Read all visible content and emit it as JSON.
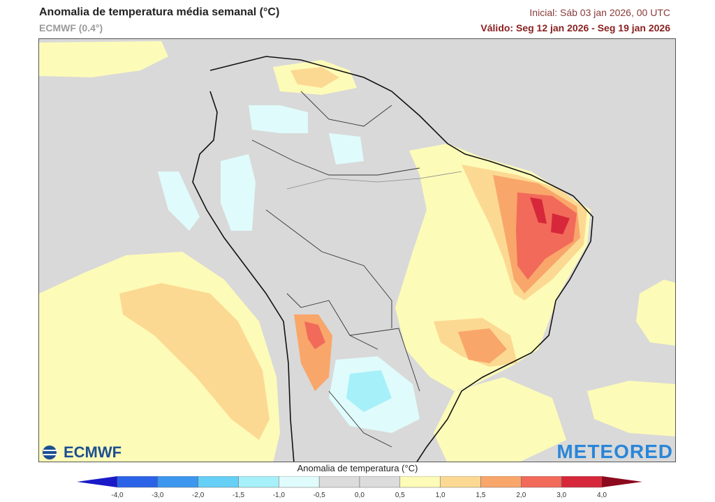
{
  "header": {
    "title": "Anomalia de temperatura média semanal (°C)",
    "model": "ECMWF (0.4°)",
    "initial": "Inicial: Sáb 03 jan 2026, 00 UTC",
    "valid": "Válido: Seg 12 jan 2026 - Seg 19 jan 2026"
  },
  "logos": {
    "left": "ECMWF",
    "right": "METEORED"
  },
  "colorbar": {
    "title": "Anomalia de temperatura (°C)",
    "ticks": [
      "-4,0",
      "-3,0",
      "-2,0",
      "-1,5",
      "-1,0",
      "-0,5",
      "0,0",
      "0,5",
      "1,0",
      "1,5",
      "2,0",
      "3,0",
      "4,0"
    ],
    "low_color": "#1a1ac8",
    "colors": [
      "#2b63e8",
      "#3d97ee",
      "#66cff5",
      "#a6f0fa",
      "#e0fbfb",
      "#dcdcdc",
      "#dcdcdc",
      "#fdfbb8",
      "#fcd992",
      "#f9a66a",
      "#f26a5a",
      "#d6283a"
    ],
    "high_color": "#8b0a1e"
  },
  "map": {
    "background": "#d9d9d9",
    "coast_color": "#111111"
  }
}
